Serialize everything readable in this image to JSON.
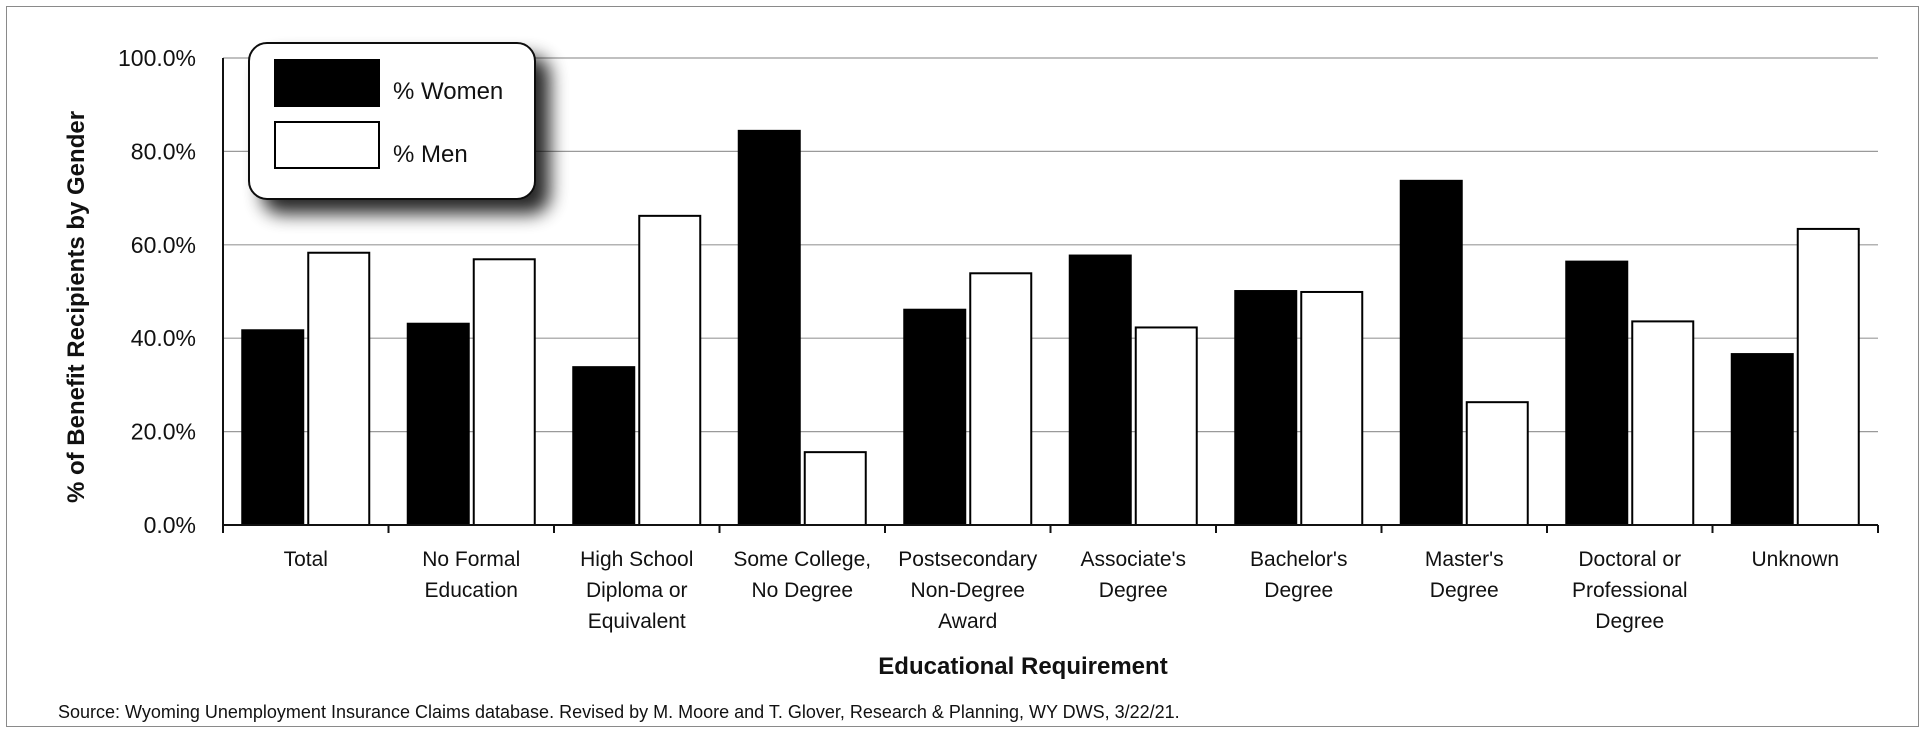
{
  "chart_data": {
    "type": "bar",
    "categories": [
      [
        "Total"
      ],
      [
        "No Formal",
        "Education"
      ],
      [
        "High School",
        "Diploma or",
        "Equivalent"
      ],
      [
        "Some College,",
        "No Degree"
      ],
      [
        "Postsecondary",
        "Non-Degree",
        "Award"
      ],
      [
        "Associate's",
        "Degree"
      ],
      [
        "Bachelor's",
        "Degree"
      ],
      [
        "Master's",
        "Degree"
      ],
      [
        "Doctoral or",
        "Professional",
        "Degree"
      ],
      [
        "Unknown"
      ]
    ],
    "series": [
      {
        "name": "% Women",
        "color": "#000000",
        "values": [
          41.7,
          43.1,
          33.8,
          84.4,
          46.1,
          57.7,
          50.1,
          73.7,
          56.4,
          36.6
        ]
      },
      {
        "name": "% Men",
        "color": "#ffffff",
        "values": [
          58.3,
          56.9,
          66.2,
          15.6,
          53.9,
          42.3,
          49.9,
          26.3,
          43.6,
          63.4
        ]
      }
    ],
    "ylim": [
      0,
      100
    ],
    "yticks": [
      0,
      20,
      40,
      60,
      80,
      100
    ],
    "ytick_labels": [
      "0.0%",
      "20.0%",
      "40.0%",
      "60.0%",
      "80.0%",
      "100.0%"
    ],
    "xlabel": "Educational Requirement",
    "ylabel": "% of Benefit Recipients by Gender",
    "grid": true,
    "legend_position": "top-left"
  },
  "source_note": "Source: Wyoming Unemployment Insurance Claims database. Revised by M. Moore and T. Glover, Research & Planning, WY DWS, 3/22/21."
}
